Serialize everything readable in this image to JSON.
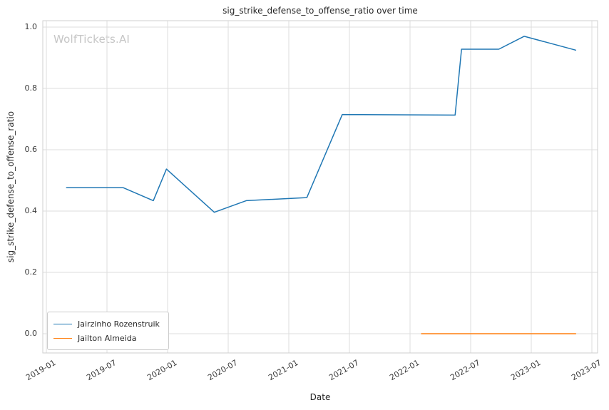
{
  "watermark": "WolfTickets.AI",
  "chart_data": {
    "type": "line",
    "title": "sig_strike_defense_to_offense_ratio over time",
    "xlabel": "Date",
    "ylabel": "sig_strike_defense_to_offense_ratio",
    "x_ticks": [
      "2019-01",
      "2019-07",
      "2020-01",
      "2020-07",
      "2021-01",
      "2021-07",
      "2022-01",
      "2022-07",
      "2023-01",
      "2023-07"
    ],
    "y_ticks": [
      0.0,
      0.2,
      0.4,
      0.6,
      0.8,
      1.0
    ],
    "ylim": [
      -0.06,
      1.02
    ],
    "grid": true,
    "grid_color": "#dddddd",
    "spine_color": "#cfcfcf",
    "legend_position": "lower left",
    "series": [
      {
        "name": "Jairzinho Rozenstruik",
        "color": "#1f77b4",
        "points": [
          [
            "2019-03-01",
            0.476
          ],
          [
            "2019-08-20",
            0.476
          ],
          [
            "2019-11-19",
            0.434
          ],
          [
            "2019-12-28",
            0.537
          ],
          [
            "2020-05-20",
            0.396
          ],
          [
            "2020-08-25",
            0.434
          ],
          [
            "2021-02-25",
            0.444
          ],
          [
            "2021-06-10",
            0.715
          ],
          [
            "2022-05-15",
            0.713
          ],
          [
            "2022-06-04",
            0.928
          ],
          [
            "2022-09-25",
            0.928
          ],
          [
            "2022-12-10",
            0.97
          ],
          [
            "2023-05-13",
            0.925
          ]
        ]
      },
      {
        "name": "Jailton Almeida",
        "color": "#ff7f0e",
        "points": [
          [
            "2022-02-05",
            0.0
          ],
          [
            "2022-05-14",
            0.0
          ],
          [
            "2022-11-19",
            0.0
          ],
          [
            "2023-01-21",
            0.0
          ],
          [
            "2023-05-13",
            0.0
          ]
        ]
      }
    ]
  }
}
